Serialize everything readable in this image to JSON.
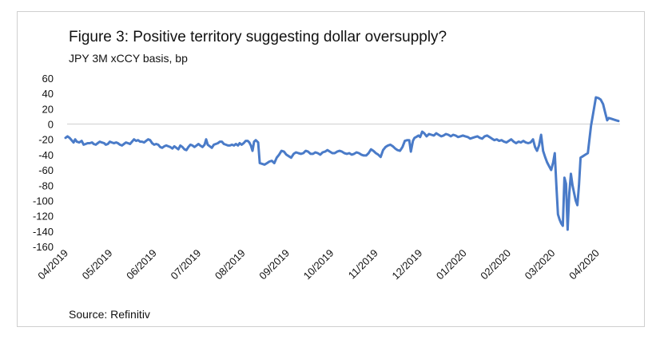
{
  "title": "Figure 3: Positive territory suggesting dollar oversupply?",
  "subtitle": "JPY 3M xCCY basis, bp",
  "source": "Source: Refinitiv",
  "colors": {
    "line": "#4a7bc8",
    "axis": "#d0d0d0"
  },
  "chart_data": {
    "type": "line",
    "title": "Figure 3: Positive territory suggesting dollar oversupply?",
    "subtitle": "JPY 3M xCCY basis, bp",
    "xlabel": "",
    "ylabel": "",
    "ylim": [
      -160,
      60
    ],
    "yticks": [
      "60",
      "40",
      "20",
      "0",
      "-20",
      "-40",
      "-60",
      "-80",
      "-100",
      "-120",
      "-140",
      "-160"
    ],
    "xticks": [
      "04/2019",
      "05/2019",
      "06/2019",
      "07/2019",
      "08/2019",
      "09/2019",
      "10/2019",
      "11/2019",
      "12/2019",
      "01/2020",
      "02/2020",
      "03/2020",
      "04/2020"
    ],
    "grid": false,
    "series": [
      {
        "values": [
          [
            0.0,
            -18
          ],
          [
            0.5,
            -16
          ],
          [
            1.0,
            -18
          ],
          [
            1.5,
            -21
          ],
          [
            2.0,
            -24
          ],
          [
            2.4,
            -20
          ],
          [
            2.8,
            -23
          ],
          [
            3.4,
            -24
          ],
          [
            4.0,
            -22
          ],
          [
            4.5,
            -27
          ],
          [
            5.0,
            -26
          ],
          [
            5.5,
            -25
          ],
          [
            6.0,
            -25
          ],
          [
            6.6,
            -24
          ],
          [
            7.0,
            -26
          ],
          [
            7.5,
            -27
          ],
          [
            8.0,
            -25
          ],
          [
            8.5,
            -23
          ],
          [
            9.0,
            -24
          ],
          [
            9.6,
            -25
          ],
          [
            10.0,
            -27
          ],
          [
            10.5,
            -26
          ],
          [
            11.0,
            -23
          ],
          [
            11.5,
            -24
          ],
          [
            12.0,
            -25
          ],
          [
            12.6,
            -24
          ],
          [
            13.0,
            -25
          ],
          [
            13.5,
            -27
          ],
          [
            14.0,
            -28
          ],
          [
            14.5,
            -26
          ],
          [
            15.0,
            -24
          ],
          [
            15.5,
            -25
          ],
          [
            16.0,
            -26
          ],
          [
            16.5,
            -23
          ],
          [
            17.0,
            -20
          ],
          [
            17.5,
            -22
          ],
          [
            18.0,
            -21
          ],
          [
            18.5,
            -23
          ],
          [
            19.0,
            -23
          ],
          [
            19.5,
            -24
          ],
          [
            20.0,
            -22
          ],
          [
            20.5,
            -20
          ],
          [
            21.0,
            -21
          ],
          [
            21.5,
            -25
          ],
          [
            22.0,
            -27
          ],
          [
            22.5,
            -26
          ],
          [
            23.0,
            -27
          ],
          [
            23.5,
            -30
          ],
          [
            24.0,
            -31
          ],
          [
            24.5,
            -29
          ],
          [
            25.0,
            -28
          ],
          [
            25.5,
            -29
          ],
          [
            26.0,
            -30
          ],
          [
            26.5,
            -32
          ],
          [
            27.0,
            -29
          ],
          [
            27.5,
            -31
          ],
          [
            28.0,
            -33
          ],
          [
            28.5,
            -28
          ],
          [
            29.0,
            -30
          ],
          [
            29.5,
            -33
          ],
          [
            30.0,
            -34
          ],
          [
            30.5,
            -30
          ],
          [
            31.0,
            -27
          ],
          [
            31.5,
            -28
          ],
          [
            32.0,
            -30
          ],
          [
            32.5,
            -28
          ],
          [
            33.0,
            -26
          ],
          [
            33.4,
            -28
          ],
          [
            34.0,
            -30
          ],
          [
            34.5,
            -27
          ],
          [
            34.9,
            -20
          ],
          [
            35.3,
            -27
          ],
          [
            35.8,
            -29
          ],
          [
            36.3,
            -31
          ],
          [
            36.8,
            -27
          ],
          [
            37.3,
            -26
          ],
          [
            37.8,
            -25
          ],
          [
            38.3,
            -23
          ],
          [
            38.8,
            -23
          ],
          [
            39.3,
            -26
          ],
          [
            39.8,
            -27
          ],
          [
            40.3,
            -28
          ],
          [
            40.8,
            -28
          ],
          [
            41.3,
            -27
          ],
          [
            41.8,
            -28
          ],
          [
            42.3,
            -26
          ],
          [
            42.8,
            -28
          ],
          [
            43.2,
            -25
          ],
          [
            43.7,
            -27
          ],
          [
            44.2,
            -25
          ],
          [
            44.7,
            -22
          ],
          [
            45.2,
            -22
          ],
          [
            45.6,
            -24
          ],
          [
            46.0,
            -28
          ],
          [
            46.4,
            -35
          ],
          [
            46.8,
            -23
          ],
          [
            47.2,
            -21
          ],
          [
            47.8,
            -24
          ],
          [
            48.2,
            -51
          ],
          [
            48.8,
            -52
          ],
          [
            49.4,
            -53
          ],
          [
            50.0,
            -51
          ],
          [
            50.6,
            -49
          ],
          [
            51.2,
            -48
          ],
          [
            51.8,
            -51
          ],
          [
            52.4,
            -44
          ],
          [
            53.0,
            -40
          ],
          [
            53.6,
            -35
          ],
          [
            54.2,
            -36
          ],
          [
            54.8,
            -40
          ],
          [
            55.4,
            -42
          ],
          [
            56.0,
            -44
          ],
          [
            56.6,
            -39
          ],
          [
            57.2,
            -37
          ],
          [
            57.8,
            -38
          ],
          [
            58.4,
            -39
          ],
          [
            59.0,
            -38
          ],
          [
            59.6,
            -35
          ],
          [
            60.2,
            -36
          ],
          [
            60.8,
            -39
          ],
          [
            61.4,
            -39
          ],
          [
            62.0,
            -37
          ],
          [
            62.6,
            -38
          ],
          [
            63.2,
            -40
          ],
          [
            63.8,
            -37
          ],
          [
            64.4,
            -36
          ],
          [
            65.0,
            -34
          ],
          [
            65.6,
            -36
          ],
          [
            66.2,
            -38
          ],
          [
            66.8,
            -38
          ],
          [
            67.4,
            -36
          ],
          [
            68.0,
            -35
          ],
          [
            68.6,
            -36
          ],
          [
            69.2,
            -38
          ],
          [
            69.8,
            -39
          ],
          [
            70.4,
            -38
          ],
          [
            71.0,
            -40
          ],
          [
            71.6,
            -39
          ],
          [
            72.2,
            -37
          ],
          [
            72.8,
            -38
          ],
          [
            73.4,
            -40
          ],
          [
            74.0,
            -41
          ],
          [
            74.6,
            -41
          ],
          [
            75.2,
            -38
          ],
          [
            75.8,
            -33
          ],
          [
            76.4,
            -35
          ],
          [
            77.0,
            -38
          ],
          [
            77.6,
            -40
          ],
          [
            78.2,
            -43
          ],
          [
            78.8,
            -34
          ],
          [
            79.4,
            -30
          ],
          [
            80.0,
            -28
          ],
          [
            80.6,
            -27
          ],
          [
            81.2,
            -29
          ],
          [
            81.8,
            -32
          ],
          [
            82.4,
            -34
          ],
          [
            83.0,
            -35
          ],
          [
            83.6,
            -30
          ],
          [
            84.2,
            -22
          ],
          [
            84.8,
            -21
          ],
          [
            85.3,
            -21
          ],
          [
            85.7,
            -36
          ],
          [
            86.2,
            -22
          ],
          [
            86.6,
            -18
          ],
          [
            87.0,
            -17
          ],
          [
            87.6,
            -15
          ],
          [
            88.0,
            -17
          ],
          [
            88.5,
            -10
          ],
          [
            89.0,
            -12
          ],
          [
            89.6,
            -16
          ],
          [
            90.2,
            -13
          ],
          [
            90.8,
            -14
          ],
          [
            91.4,
            -15
          ],
          [
            92.0,
            -12
          ],
          [
            92.6,
            -14
          ],
          [
            93.2,
            -16
          ],
          [
            93.8,
            -15
          ],
          [
            94.4,
            -13
          ],
          [
            95.0,
            -14
          ],
          [
            95.6,
            -16
          ],
          [
            96.2,
            -14
          ],
          [
            96.8,
            -15
          ],
          [
            97.4,
            -17
          ],
          [
            98.0,
            -16
          ],
          [
            98.6,
            -15
          ],
          [
            99.2,
            -16
          ],
          [
            99.8,
            -17
          ],
          [
            100.4,
            -19
          ],
          [
            101.0,
            -18
          ],
          [
            101.6,
            -17
          ],
          [
            102.2,
            -16
          ],
          [
            102.8,
            -18
          ],
          [
            103.4,
            -19
          ],
          [
            104.0,
            -16
          ],
          [
            104.6,
            -15
          ],
          [
            105.2,
            -17
          ],
          [
            105.8,
            -19
          ],
          [
            106.4,
            -21
          ],
          [
            107.0,
            -20
          ],
          [
            107.6,
            -22
          ],
          [
            108.2,
            -21
          ],
          [
            108.8,
            -23
          ],
          [
            109.4,
            -24
          ],
          [
            110.0,
            -22
          ],
          [
            110.6,
            -20
          ],
          [
            111.2,
            -23
          ],
          [
            111.8,
            -25
          ],
          [
            112.4,
            -23
          ],
          [
            113.0,
            -24
          ],
          [
            113.6,
            -22
          ],
          [
            114.2,
            -24
          ],
          [
            114.8,
            -25
          ],
          [
            115.4,
            -24
          ],
          [
            116.0,
            -20
          ],
          [
            116.5,
            -30
          ],
          [
            117.0,
            -35
          ],
          [
            117.5,
            -28
          ],
          [
            118.0,
            -14
          ],
          [
            118.5,
            -35
          ],
          [
            119.0,
            -43
          ],
          [
            119.5,
            -50
          ],
          [
            120.0,
            -55
          ],
          [
            120.5,
            -60
          ],
          [
            121.0,
            -50
          ],
          [
            121.4,
            -38
          ],
          [
            121.8,
            -80
          ],
          [
            122.2,
            -118
          ],
          [
            122.6,
            -125
          ],
          [
            123.0,
            -130
          ],
          [
            123.4,
            -133
          ],
          [
            123.8,
            -70
          ],
          [
            124.2,
            -78
          ],
          [
            124.6,
            -138
          ],
          [
            125.0,
            -90
          ],
          [
            125.4,
            -65
          ],
          [
            125.8,
            -80
          ],
          [
            126.2,
            -90
          ],
          [
            126.6,
            -100
          ],
          [
            127.0,
            -106
          ],
          [
            127.4,
            -80
          ],
          [
            127.8,
            -44
          ],
          [
            128.4,
            -42
          ],
          [
            129.0,
            -40
          ],
          [
            129.6,
            -38
          ],
          [
            130.0,
            -20
          ],
          [
            130.4,
            -2
          ],
          [
            130.8,
            10
          ],
          [
            131.2,
            22
          ],
          [
            131.6,
            35
          ],
          [
            132.2,
            34
          ],
          [
            132.8,
            32
          ],
          [
            133.4,
            26
          ],
          [
            134.0,
            13
          ],
          [
            134.4,
            5
          ],
          [
            134.8,
            8
          ],
          [
            135.4,
            7
          ],
          [
            136.0,
            6
          ],
          [
            136.6,
            5
          ],
          [
            137.2,
            4
          ]
        ]
      }
    ]
  }
}
